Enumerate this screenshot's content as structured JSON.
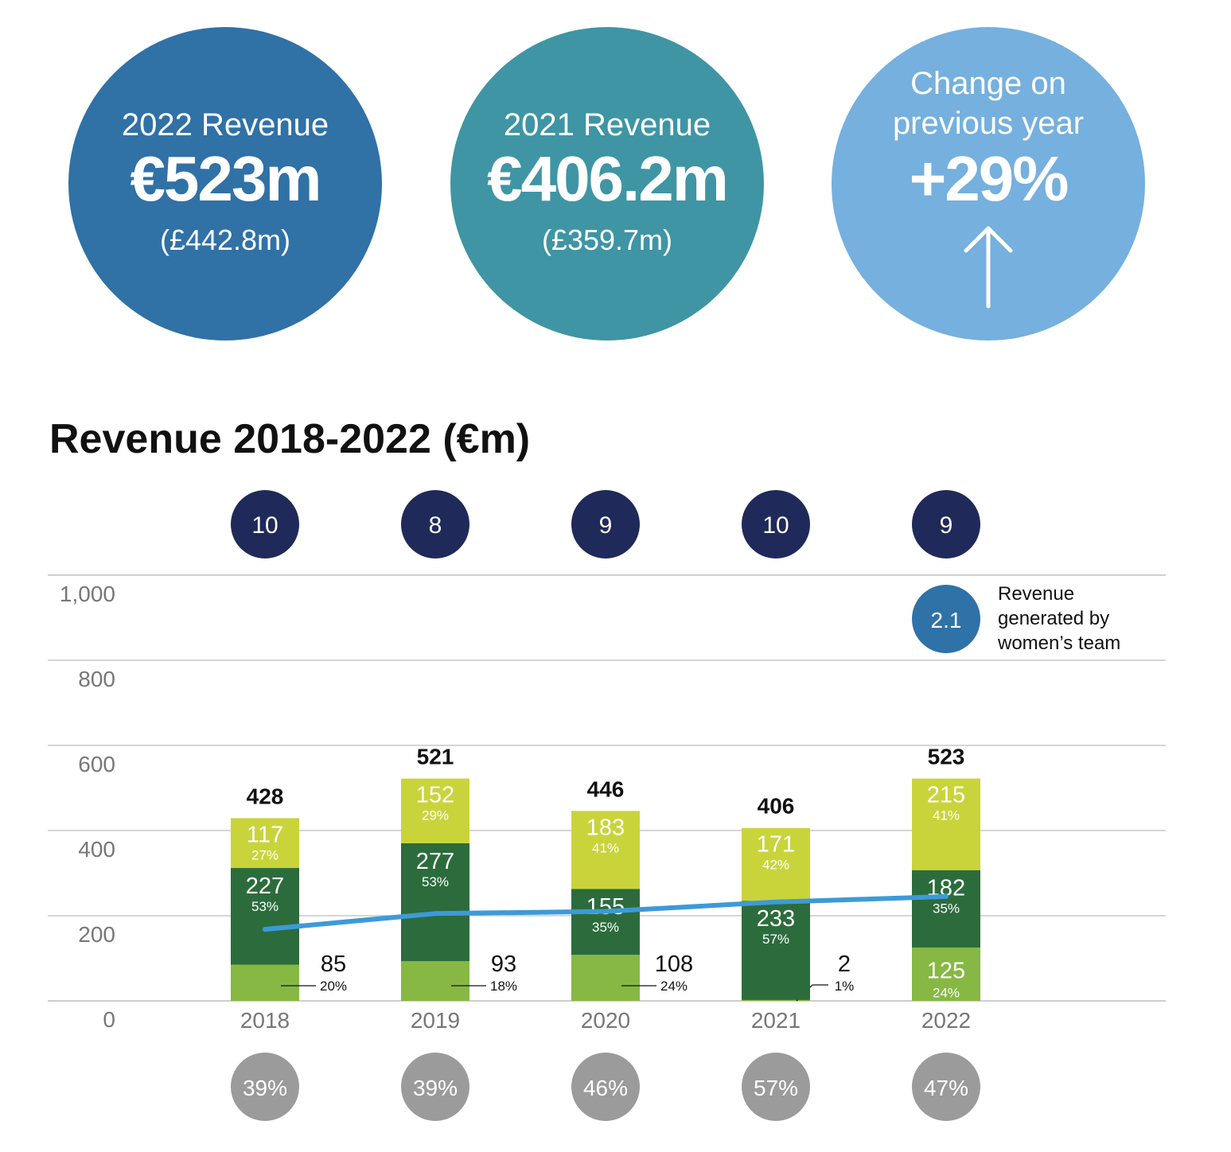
{
  "kpis": {
    "revenue_2022": {
      "label": "2022 Revenue",
      "value": "€523m",
      "sub": "(£442.8m)",
      "color": "#3071a6"
    },
    "revenue_2021": {
      "label": "2021 Revenue",
      "value": "€406.2m",
      "sub": "(£359.7m)",
      "color": "#3f95a4"
    },
    "change": {
      "label_line1": "Change on",
      "label_line2": "previous year",
      "value": "+29%",
      "icon": "arrow-up-icon",
      "color": "#75b0de"
    }
  },
  "chart_data": {
    "type": "bar",
    "stacked": true,
    "title": "Revenue 2018-2022 (€m)",
    "xlabel": "",
    "ylabel": "",
    "ylim": [
      0,
      1000
    ],
    "yticks": [
      "0",
      "200",
      "400",
      "600",
      "800",
      "1,000"
    ],
    "grid": true,
    "categories": [
      "2018",
      "2019",
      "2020",
      "2021",
      "2022"
    ],
    "totals": [
      "428",
      "521",
      "446",
      "406",
      "523"
    ],
    "series": [
      {
        "values": [
          85,
          93,
          108,
          2,
          125
        ],
        "labels": [
          "85",
          "93",
          "108",
          "2",
          "125"
        ],
        "percents": [
          "20%",
          "18%",
          "24%",
          "1%",
          "24%"
        ],
        "color": "#86b843"
      },
      {
        "values": [
          227,
          277,
          155,
          233,
          182
        ],
        "labels": [
          "227",
          "277",
          "155",
          "233",
          "182"
        ],
        "percents": [
          "53%",
          "53%",
          "35%",
          "57%",
          "35%"
        ],
        "color": "#2c6c3c"
      },
      {
        "values": [
          117,
          152,
          183,
          171,
          215
        ],
        "labels": [
          "117",
          "152",
          "183",
          "171",
          "215"
        ],
        "percents": [
          "27%",
          "29%",
          "41%",
          "42%",
          "41%"
        ],
        "color": "#c9d43b"
      }
    ],
    "line": {
      "values": [
        168,
        205,
        210,
        232,
        245
      ],
      "color": "#3d9ad8"
    },
    "top_circles": {
      "values": [
        "10",
        "8",
        "9",
        "10",
        "9"
      ],
      "color": "#1f2a5a"
    },
    "bottom_circles": {
      "values": [
        "39%",
        "39%",
        "46%",
        "57%",
        "47%"
      ],
      "color": "#9b9b9b"
    },
    "legend": {
      "value": "2.1",
      "text_lines": [
        "Revenue",
        "generated by",
        "women’s team"
      ],
      "color": "#2f72a7",
      "placement": "top-right"
    }
  }
}
